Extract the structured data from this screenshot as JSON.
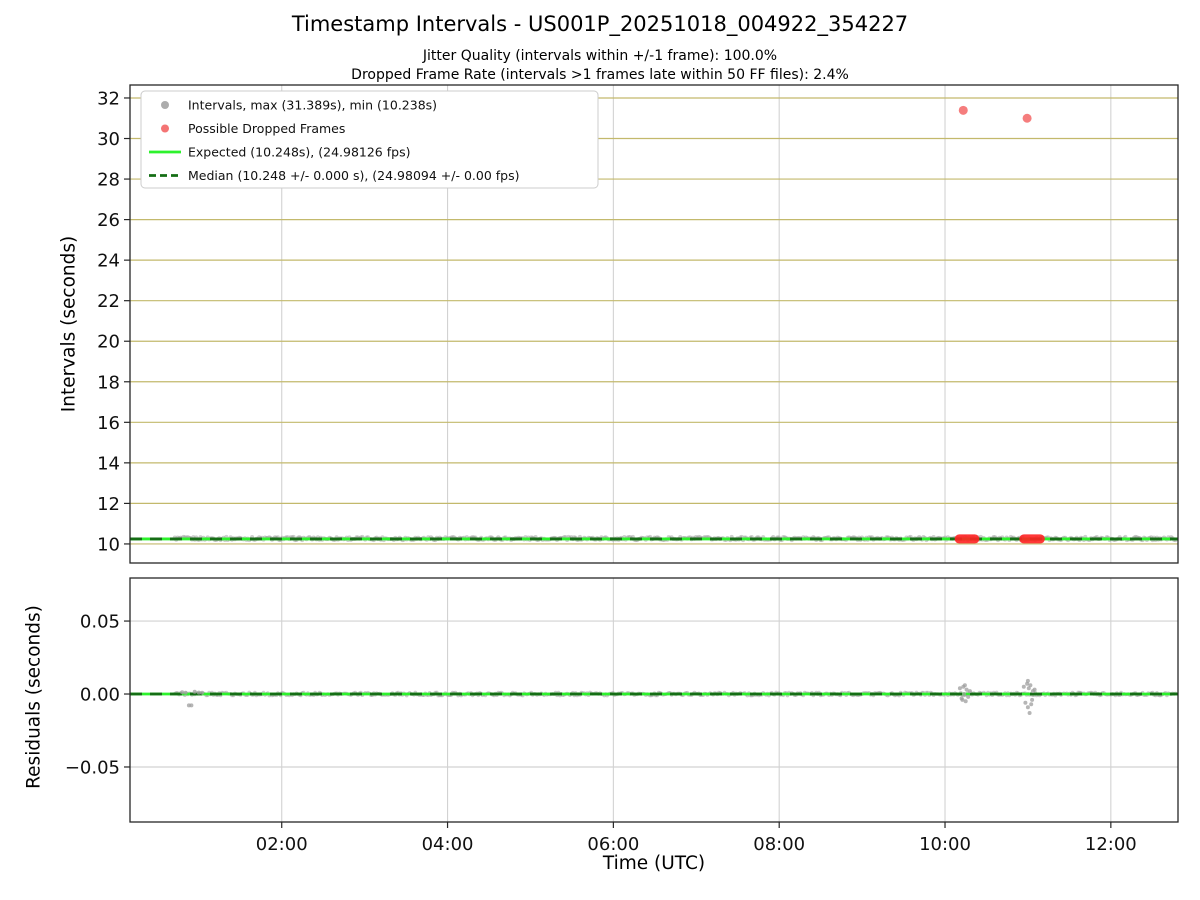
{
  "figure": {
    "title": "Timestamp Intervals - US001P_20251018_004922_354227",
    "subtitle_line1": "Jitter Quality (intervals within +/-1 frame): 100.0%",
    "subtitle_line2": "Dropped Frame Rate (intervals >1 frames late within 50 FF files): 2.4%",
    "xlabel": "Time (UTC)"
  },
  "colors": {
    "gray_marker": "#9e9e9e",
    "red_marker": "#f25c5c",
    "red_solid": "#ff2222",
    "expected_green": "#2df22d",
    "median_dark_green": "#156e15",
    "hgrid_tan": "#c3b96c",
    "grid_gray": "#d2d2d2",
    "axis": "#262626"
  },
  "chart_data": [
    {
      "type": "scatter",
      "id": "intervals",
      "title": "Timestamp Intervals - US001P_20251018_004922_354227",
      "ylabel": "Intervals (seconds)",
      "ylim": [
        9.06,
        32.64
      ],
      "yticks": [
        {
          "v": 10,
          "label": "10"
        },
        {
          "v": 12,
          "label": "12"
        },
        {
          "v": 14,
          "label": "14"
        },
        {
          "v": 16,
          "label": "16"
        },
        {
          "v": 18,
          "label": "18"
        },
        {
          "v": 20,
          "label": "20"
        },
        {
          "v": 22,
          "label": "22"
        },
        {
          "v": 24,
          "label": "24"
        },
        {
          "v": 26,
          "label": "26"
        },
        {
          "v": 28,
          "label": "28"
        },
        {
          "v": 30,
          "label": "30"
        },
        {
          "v": 32,
          "label": "32"
        }
      ],
      "xlim_hours": [
        0.17,
        12.81
      ],
      "xticks": [
        {
          "v": 2,
          "label": "02:00"
        },
        {
          "v": 4,
          "label": "04:00"
        },
        {
          "v": 6,
          "label": "06:00"
        },
        {
          "v": 8,
          "label": "08:00"
        },
        {
          "v": 10,
          "label": "10:00"
        },
        {
          "v": 12,
          "label": "12:00"
        }
      ],
      "grid": {
        "horizontal_color": "#c3b96c",
        "vertical_color": "#d2d2d2"
      },
      "expected": {
        "value": 10.248,
        "color": "#2df22d",
        "style": "solid",
        "label": "Expected (10.248s), (24.98126 fps)"
      },
      "median": {
        "value": 10.248,
        "color": "#156e15",
        "style": "dashed",
        "label": "Median (10.248 +/- 0.000 s), (24.98094 +/- 0.00 fps)"
      },
      "intervals_series": {
        "label": "Intervals, max (31.389s), min (10.238s)",
        "color": "#9e9e9e",
        "baseline_y": 10.248,
        "x_start": 0.71,
        "x_end": 12.78,
        "max_s": 31.389,
        "min_s": 10.238
      },
      "dropped_series": {
        "label": "Possible Dropped Frames",
        "color": "#f25c5c",
        "baseline_y": 10.248,
        "outlier_points_hours": [
          [
            10.22,
            31.389
          ],
          [
            10.99,
            31.0
          ]
        ],
        "baseline_runs_hours": [
          [
            10.17,
            10.36
          ],
          [
            10.95,
            11.15
          ]
        ]
      },
      "legend": [
        {
          "marker": "dot",
          "color": "#9e9e9e",
          "label": "Intervals, max (31.389s), min (10.238s)"
        },
        {
          "marker": "dot",
          "color": "#f25c5c",
          "label": "Possible Dropped Frames"
        },
        {
          "marker": "line",
          "color": "#2df22d",
          "label": "Expected (10.248s), (24.98126 fps)"
        },
        {
          "marker": "dashed",
          "color": "#156e15",
          "label": "Median (10.248 +/- 0.000 s), (24.98094 +/- 0.00 fps)"
        }
      ],
      "stats": {
        "jitter_quality_pct": 100.0,
        "dropped_frame_rate_pct": 2.4,
        "ff_files_window": 50,
        "interval_max_s": 31.389,
        "interval_min_s": 10.238,
        "expected_interval_s": 10.248,
        "expected_fps": 24.98126,
        "median_interval_s": 10.248,
        "median_interval_pm_s": 0.0,
        "median_fps": 24.98094,
        "median_fps_pm": 0.0,
        "capture_id": "US001P_20251018_004922_354227"
      }
    },
    {
      "type": "scatter",
      "id": "residuals",
      "ylabel": "Residuals (seconds)",
      "ylim": [
        -0.0877,
        0.0795
      ],
      "yticks": [
        {
          "v": 0.05,
          "label": "0.05"
        },
        {
          "v": 0,
          "label": "0.00"
        },
        {
          "v": -0.05,
          "label": "−0.05"
        }
      ],
      "xlim_hours": [
        0.17,
        12.81
      ],
      "xticks": [
        {
          "v": 2,
          "label": "02:00"
        },
        {
          "v": 4,
          "label": "04:00"
        },
        {
          "v": 6,
          "label": "06:00"
        },
        {
          "v": 8,
          "label": "08:00"
        },
        {
          "v": 10,
          "label": "10:00"
        },
        {
          "v": 12,
          "label": "12:00"
        }
      ],
      "grid": {
        "horizontal_color": "#d2d2d2",
        "vertical_color": "#d2d2d2"
      },
      "expected": {
        "value": 0,
        "color": "#2df22d",
        "style": "solid"
      },
      "median": {
        "value": 0,
        "color": "#156e15",
        "style": "dashed"
      },
      "baseline": {
        "color": "#9e9e9e",
        "y": 0,
        "x_start": 0.71,
        "x_end": 12.78
      },
      "clusters_hours": [
        [
          [
            0.8,
            0.0012
          ],
          [
            0.84,
            0.0008
          ],
          [
            0.88,
            -0.0078
          ],
          [
            0.91,
            -0.0078
          ],
          [
            0.95,
            0.0015
          ],
          [
            1.0,
            0.001
          ],
          [
            1.04,
            0.0008
          ]
        ],
        [
          [
            10.18,
            0.004
          ],
          [
            10.2,
            -0.003
          ],
          [
            10.21,
            -0.004
          ],
          [
            10.22,
            0.005
          ],
          [
            10.23,
            0.0
          ],
          [
            10.24,
            0.006
          ],
          [
            10.25,
            -0.005
          ],
          [
            10.26,
            0.003
          ],
          [
            10.28,
            -0.002
          ],
          [
            10.3,
            0.002
          ]
        ],
        [
          [
            10.95,
            0.005
          ],
          [
            10.97,
            -0.006
          ],
          [
            10.99,
            0.007
          ],
          [
            11.0,
            -0.009
          ],
          [
            11.0,
            0.009
          ],
          [
            11.01,
            0.004
          ],
          [
            11.02,
            -0.013
          ],
          [
            11.03,
            0.006
          ],
          [
            11.04,
            -0.007
          ],
          [
            11.05,
            -0.004
          ],
          [
            11.06,
            0.002
          ],
          [
            11.08,
            0.003
          ]
        ]
      ]
    }
  ]
}
